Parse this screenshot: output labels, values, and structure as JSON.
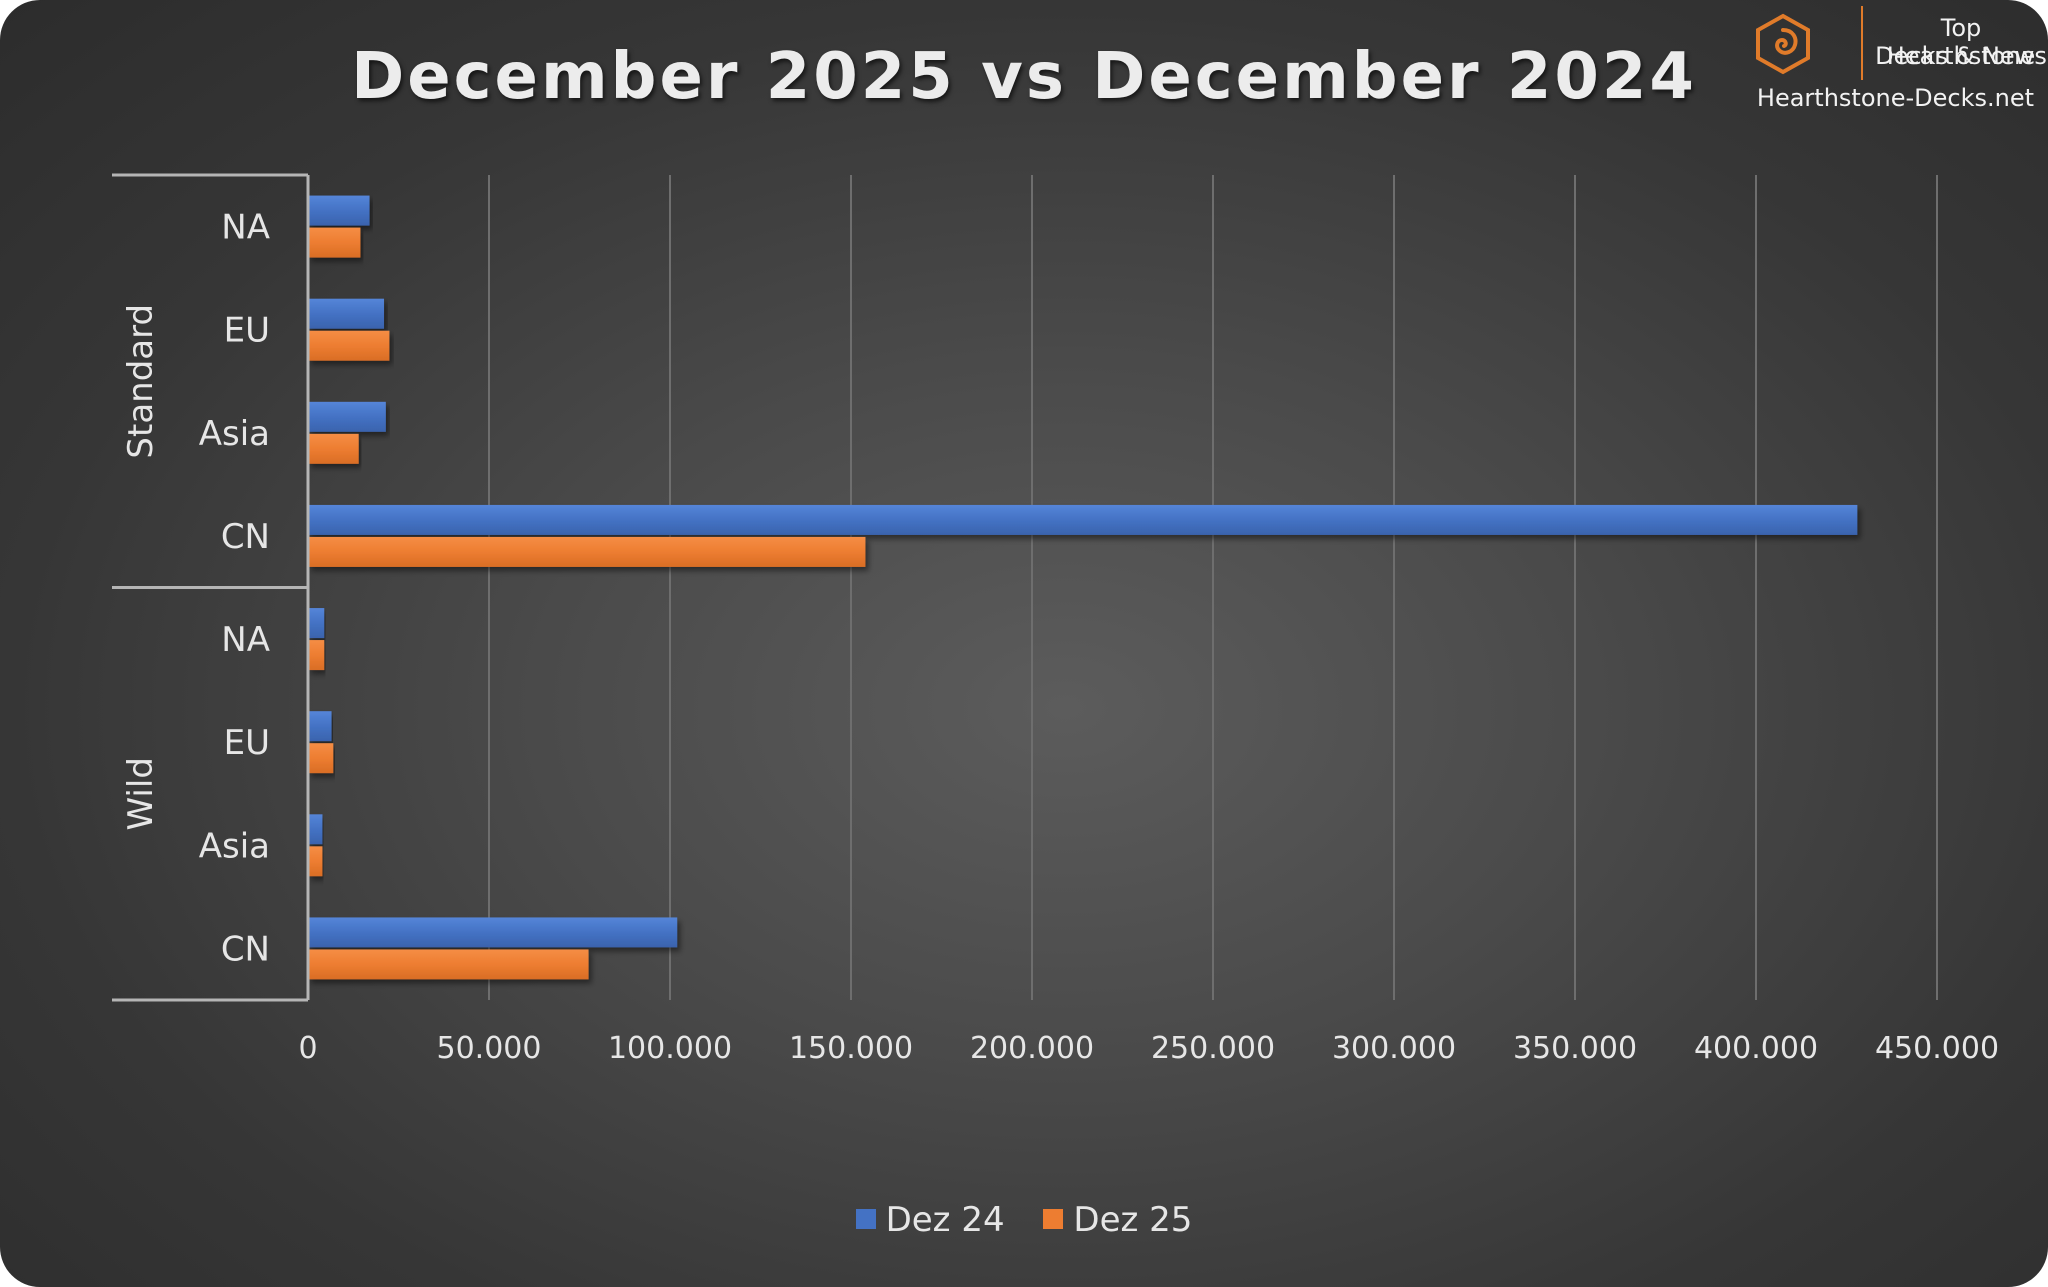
{
  "brand": {
    "line1": "Top Hearthstone",
    "line2": "Decks & News",
    "url": "Hearthstone-Decks.net",
    "icon": "hearthstone-logo-icon"
  },
  "colors": {
    "series_1": "#4472c4",
    "series_2": "#ed7d31",
    "background": "#3f3f3f",
    "logo": "#e07b2a"
  },
  "chart_data": {
    "type": "bar",
    "orientation": "horizontal",
    "title": "December 2025 vs December 2024",
    "xlim": [
      0,
      450000
    ],
    "xticks": [
      0,
      50000,
      100000,
      150000,
      200000,
      250000,
      300000,
      350000,
      400000,
      450000
    ],
    "xtick_labels": [
      "0",
      "50.000",
      "100.000",
      "150.000",
      "200.000",
      "250.000",
      "300.000",
      "350.000",
      "400.000",
      "450.000"
    ],
    "grid": "vertical",
    "legend_position": "bottom",
    "groups": [
      {
        "name": "Standard",
        "categories": [
          "NA",
          "EU",
          "Asia",
          "CN"
        ]
      },
      {
        "name": "Wild",
        "categories": [
          "NA",
          "EU",
          "Asia",
          "CN"
        ]
      }
    ],
    "series": [
      {
        "name": "Dez 24",
        "color": "#4472c4",
        "values": [
          17000,
          21000,
          21500,
          428000,
          4500,
          6500,
          4000,
          102000
        ]
      },
      {
        "name": "Dez 25",
        "color": "#ed7d31",
        "values": [
          14500,
          22500,
          14000,
          154000,
          4500,
          7000,
          4000,
          77500
        ]
      }
    ]
  }
}
